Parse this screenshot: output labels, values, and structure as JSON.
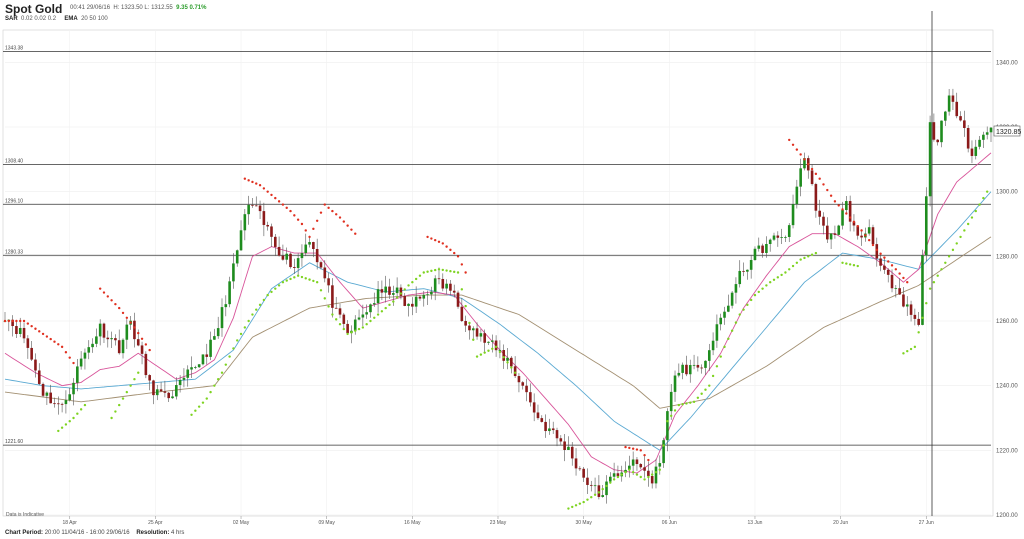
{
  "header": {
    "title": "Spot Gold",
    "quote_time": "00:41 29/06/16",
    "quote_hl": "H: 1323.50  L: 1312.55",
    "quote_change": "9.35 0.71%",
    "ind1_name": "SAR",
    "ind1_params": "0.02  0.02  0.2",
    "ind2_name": "EMA",
    "ind2_params": "20  50  100"
  },
  "footer": {
    "period_label": "Chart Period:",
    "period_value": "20:00 11/04/16 - 16:00 29/06/16",
    "resolution_label": "Resolution:",
    "resolution_value": "4 hrs"
  },
  "colors": {
    "up": "#1e8c1e",
    "down": "#8b1a1a",
    "sar_up": "#7ed321",
    "sar_down": "#e03020",
    "ema20": "#d8549a",
    "ema50": "#5aa9d2",
    "ema100": "#a39072",
    "levels": "#333333"
  },
  "chart_data": {
    "type": "candlestick",
    "ylim": [
      1200,
      1350
    ],
    "yticks": [
      1200,
      1220,
      1240,
      1260,
      1280,
      1300,
      1320,
      1340
    ],
    "ytick_labels": [
      "1200.00",
      "1220.00",
      "1240.00",
      "1260.00",
      "1280.00",
      "1300.00",
      "1320.00",
      "1340.00"
    ],
    "xticks": [
      "18 Apr",
      "25 Apr",
      "02 May",
      "09 May",
      "16 May",
      "23 May",
      "30 May",
      "06 Jun",
      "13 Jun",
      "20 Jun",
      "27 Jun"
    ],
    "last_price": "1320.85",
    "data_note": "Data is Indicative",
    "levels": [
      {
        "value": 1343.38,
        "label": "1343.38"
      },
      {
        "value": 1308.4,
        "label": "1308.40"
      },
      {
        "value": 1296.1,
        "label": "1296.10"
      },
      {
        "value": 1280.33,
        "label": "1280.33"
      },
      {
        "value": 1221.6,
        "label": "1221.60"
      }
    ],
    "path": [
      [
        0,
        1262
      ],
      [
        5,
        1255
      ],
      [
        10,
        1238
      ],
      [
        15,
        1233
      ],
      [
        20,
        1248
      ],
      [
        25,
        1258
      ],
      [
        30,
        1252
      ],
      [
        33,
        1260
      ],
      [
        38,
        1240
      ],
      [
        42,
        1236
      ],
      [
        46,
        1240
      ],
      [
        50,
        1246
      ],
      [
        55,
        1254
      ],
      [
        60,
        1276
      ],
      [
        63,
        1293
      ],
      [
        65,
        1296
      ],
      [
        68,
        1290
      ],
      [
        72,
        1282
      ],
      [
        76,
        1277
      ],
      [
        80,
        1286
      ],
      [
        84,
        1273
      ],
      [
        87,
        1262
      ],
      [
        90,
        1256
      ],
      [
        94,
        1262
      ],
      [
        98,
        1268
      ],
      [
        102,
        1270
      ],
      [
        106,
        1264
      ],
      [
        110,
        1268
      ],
      [
        113,
        1272
      ],
      [
        117,
        1270
      ],
      [
        120,
        1262
      ],
      [
        124,
        1256
      ],
      [
        128,
        1252
      ],
      [
        132,
        1248
      ],
      [
        136,
        1240
      ],
      [
        140,
        1230
      ],
      [
        144,
        1225
      ],
      [
        148,
        1220
      ],
      [
        152,
        1212
      ],
      [
        156,
        1206
      ],
      [
        160,
        1212
      ],
      [
        164,
        1216
      ],
      [
        168,
        1214
      ],
      [
        170,
        1210
      ],
      [
        173,
        1222
      ],
      [
        175,
        1240
      ],
      [
        178,
        1246
      ],
      [
        182,
        1244
      ],
      [
        186,
        1254
      ],
      [
        190,
        1266
      ],
      [
        194,
        1276
      ],
      [
        198,
        1282
      ],
      [
        202,
        1285
      ],
      [
        206,
        1288
      ],
      [
        208,
        1303
      ],
      [
        210,
        1311
      ],
      [
        213,
        1296
      ],
      [
        216,
        1284
      ],
      [
        218,
        1288
      ],
      [
        221,
        1296
      ],
      [
        224,
        1285
      ],
      [
        227,
        1289
      ],
      [
        230,
        1277
      ],
      [
        233,
        1270
      ],
      [
        236,
        1265
      ],
      [
        238,
        1262
      ],
      [
        240,
        1258
      ],
      [
        242,
        1300
      ],
      [
        243,
        1320
      ],
      [
        245,
        1316
      ],
      [
        248,
        1328
      ],
      [
        251,
        1324
      ],
      [
        254,
        1311
      ],
      [
        256,
        1316
      ],
      [
        259,
        1321
      ]
    ],
    "sar_down_rows": [
      [
        0,
        1260
      ],
      [
        5,
        1260
      ],
      [
        10,
        1256
      ],
      [
        15,
        1252
      ],
      [
        18,
        1247
      ],
      [
        25,
        1270
      ],
      [
        30,
        1264
      ],
      [
        34,
        1258
      ],
      [
        38,
        1251
      ],
      [
        63,
        1304
      ],
      [
        67,
        1302
      ],
      [
        71,
        1298
      ],
      [
        75,
        1294
      ],
      [
        78,
        1290
      ],
      [
        80,
        1286
      ],
      [
        84,
        1296
      ],
      [
        88,
        1292
      ],
      [
        92,
        1287
      ],
      [
        111,
        1286
      ],
      [
        115,
        1284
      ],
      [
        119,
        1280
      ],
      [
        121,
        1275
      ],
      [
        163,
        1221
      ],
      [
        167,
        1220
      ],
      [
        169,
        1217
      ],
      [
        206,
        1316
      ],
      [
        210,
        1310
      ],
      [
        214,
        1304
      ],
      [
        218,
        1297
      ],
      [
        222,
        1292
      ],
      [
        225,
        1288
      ],
      [
        229,
        1282
      ],
      [
        234,
        1276
      ],
      [
        237,
        1272
      ]
    ],
    "sar_up_rows": [
      [
        14,
        1226
      ],
      [
        18,
        1230
      ],
      [
        21,
        1234
      ],
      [
        28,
        1230
      ],
      [
        32,
        1238
      ],
      [
        35,
        1244
      ],
      [
        49,
        1231
      ],
      [
        53,
        1236
      ],
      [
        57,
        1244
      ],
      [
        61,
        1254
      ],
      [
        65,
        1262
      ],
      [
        69,
        1268
      ],
      [
        73,
        1272
      ],
      [
        77,
        1274
      ],
      [
        82,
        1272
      ],
      [
        86,
        1262
      ],
      [
        90,
        1256
      ],
      [
        94,
        1258
      ],
      [
        98,
        1262
      ],
      [
        102,
        1266
      ],
      [
        106,
        1271
      ],
      [
        110,
        1275
      ],
      [
        114,
        1276
      ],
      [
        119,
        1275
      ],
      [
        124,
        1249
      ],
      [
        129,
        1252
      ],
      [
        134,
        1244
      ],
      [
        148,
        1202
      ],
      [
        152,
        1204
      ],
      [
        156,
        1207
      ],
      [
        160,
        1211
      ],
      [
        164,
        1214
      ],
      [
        168,
        1211
      ],
      [
        172,
        1214
      ],
      [
        174,
        1229
      ],
      [
        177,
        1234
      ],
      [
        181,
        1235
      ],
      [
        185,
        1240
      ],
      [
        189,
        1252
      ],
      [
        193,
        1262
      ],
      [
        197,
        1268
      ],
      [
        201,
        1272
      ],
      [
        205,
        1275
      ],
      [
        209,
        1279
      ],
      [
        213,
        1281
      ],
      [
        220,
        1278
      ],
      [
        224,
        1277
      ],
      [
        236,
        1250
      ],
      [
        239,
        1252
      ],
      [
        243,
        1270
      ],
      [
        247,
        1278
      ],
      [
        251,
        1286
      ],
      [
        255,
        1294
      ],
      [
        258,
        1300
      ]
    ],
    "ema20": [
      [
        0,
        1250
      ],
      [
        8,
        1244
      ],
      [
        15,
        1240
      ],
      [
        20,
        1241
      ],
      [
        25,
        1245
      ],
      [
        30,
        1246
      ],
      [
        35,
        1250
      ],
      [
        40,
        1246
      ],
      [
        45,
        1242
      ],
      [
        50,
        1244
      ],
      [
        55,
        1248
      ],
      [
        60,
        1261
      ],
      [
        65,
        1280
      ],
      [
        70,
        1283
      ],
      [
        76,
        1281
      ],
      [
        82,
        1281
      ],
      [
        88,
        1272
      ],
      [
        94,
        1264
      ],
      [
        100,
        1266
      ],
      [
        106,
        1268
      ],
      [
        112,
        1269
      ],
      [
        118,
        1268
      ],
      [
        124,
        1259
      ],
      [
        130,
        1251
      ],
      [
        136,
        1244
      ],
      [
        142,
        1236
      ],
      [
        148,
        1228
      ],
      [
        154,
        1218
      ],
      [
        160,
        1214
      ],
      [
        166,
        1213
      ],
      [
        171,
        1217
      ],
      [
        176,
        1231
      ],
      [
        182,
        1240
      ],
      [
        188,
        1250
      ],
      [
        194,
        1264
      ],
      [
        200,
        1274
      ],
      [
        206,
        1283
      ],
      [
        212,
        1287
      ],
      [
        218,
        1287
      ],
      [
        224,
        1283
      ],
      [
        230,
        1278
      ],
      [
        236,
        1272
      ],
      [
        240,
        1276
      ],
      [
        245,
        1293
      ],
      [
        250,
        1303
      ],
      [
        255,
        1308
      ],
      [
        259,
        1312
      ]
    ],
    "ema50": [
      [
        0,
        1242
      ],
      [
        10,
        1240
      ],
      [
        20,
        1239
      ],
      [
        30,
        1240
      ],
      [
        40,
        1241
      ],
      [
        50,
        1242
      ],
      [
        60,
        1251
      ],
      [
        70,
        1270
      ],
      [
        80,
        1278
      ],
      [
        90,
        1272
      ],
      [
        100,
        1269
      ],
      [
        110,
        1270
      ],
      [
        120,
        1267
      ],
      [
        130,
        1259
      ],
      [
        140,
        1250
      ],
      [
        150,
        1240
      ],
      [
        160,
        1229
      ],
      [
        172,
        1220
      ],
      [
        180,
        1230
      ],
      [
        190,
        1244
      ],
      [
        200,
        1258
      ],
      [
        210,
        1272
      ],
      [
        220,
        1281
      ],
      [
        230,
        1279
      ],
      [
        240,
        1276
      ],
      [
        250,
        1288
      ],
      [
        259,
        1300
      ]
    ],
    "ema100": [
      [
        0,
        1238
      ],
      [
        20,
        1235
      ],
      [
        40,
        1238
      ],
      [
        55,
        1240
      ],
      [
        65,
        1255
      ],
      [
        80,
        1264
      ],
      [
        95,
        1267
      ],
      [
        110,
        1268
      ],
      [
        120,
        1268
      ],
      [
        135,
        1262
      ],
      [
        150,
        1251
      ],
      [
        165,
        1240
      ],
      [
        172,
        1233
      ],
      [
        185,
        1236
      ],
      [
        200,
        1246
      ],
      [
        215,
        1258
      ],
      [
        230,
        1266
      ],
      [
        240,
        1271
      ],
      [
        250,
        1279
      ],
      [
        259,
        1286
      ]
    ]
  }
}
